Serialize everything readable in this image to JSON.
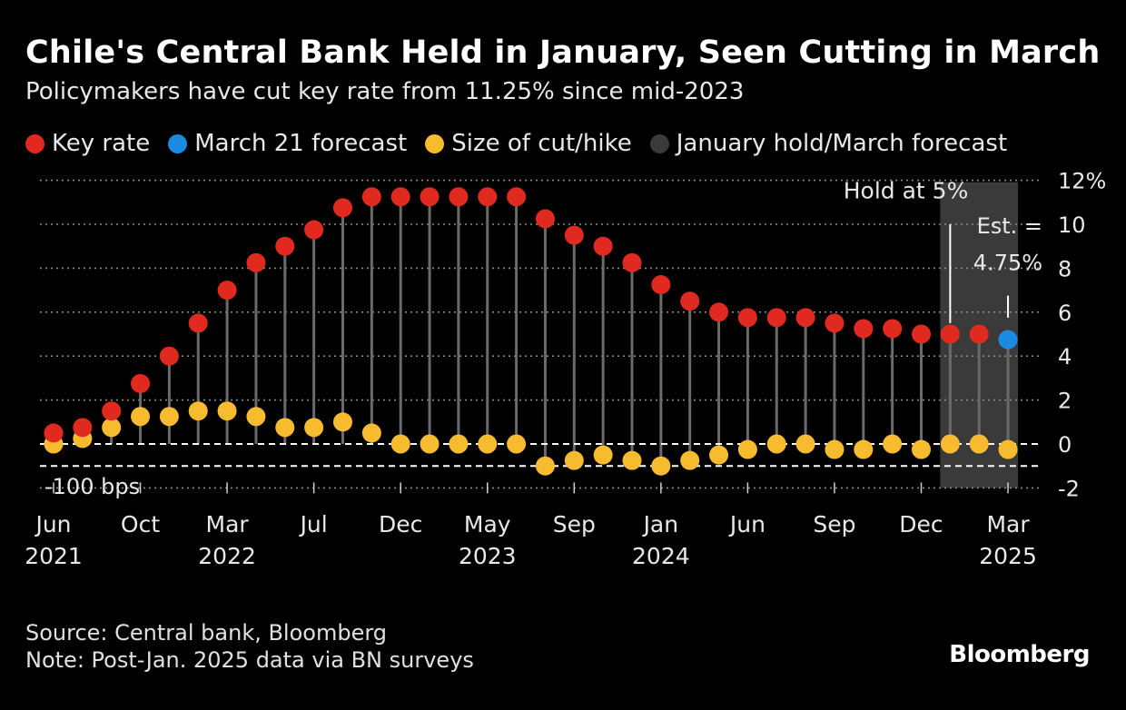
{
  "header": {
    "title": "Chile's Central Bank Held in January, Seen Cutting in March",
    "subtitle": "Policymakers have cut key rate from 11.25% since mid-2023"
  },
  "legend": [
    {
      "label": "Key rate",
      "color": "#e02a20"
    },
    {
      "label": "March 21 forecast",
      "color": "#1a8be0"
    },
    {
      "label": "Size of cut/hike",
      "color": "#f7bb2f"
    },
    {
      "label": "January hold/March forecast",
      "color": "#3a3a3a"
    }
  ],
  "footer": {
    "source": "Source: Central bank, Bloomberg",
    "note": "Note: Post-Jan. 2025 data via BN surveys"
  },
  "brand": "Bloomberg",
  "colors": {
    "key_rate": "#e02a20",
    "forecast": "#1a8be0",
    "cut": "#f7bb2f",
    "shade": "#3a3a3a",
    "stem": "#6a6a6a",
    "grid": "#8a8a8a"
  },
  "chart_data": {
    "type": "scatter",
    "title": "Chile's Central Bank Held in January, Seen Cutting in March",
    "ylim": [
      -2,
      12
    ],
    "yticks": [
      -2,
      0,
      2,
      4,
      6,
      8,
      10,
      12
    ],
    "ytick_labels": [
      "-2",
      "0",
      "2",
      "4",
      "6",
      "8",
      "10",
      "12%"
    ],
    "x_ticks": [
      {
        "index": 0,
        "month": "Jun",
        "year": "2021"
      },
      {
        "index": 3,
        "month": "Oct",
        "year": ""
      },
      {
        "index": 6,
        "month": "Mar",
        "year": "2022"
      },
      {
        "index": 9,
        "month": "Jul",
        "year": ""
      },
      {
        "index": 12,
        "month": "Dec",
        "year": ""
      },
      {
        "index": 15,
        "month": "May",
        "year": "2023"
      },
      {
        "index": 18,
        "month": "Sep",
        "year": ""
      },
      {
        "index": 21,
        "month": "Jan",
        "year": "2024"
      },
      {
        "index": 24,
        "month": "Jun",
        "year": ""
      },
      {
        "index": 27,
        "month": "Sep",
        "year": ""
      },
      {
        "index": 30,
        "month": "Dec",
        "year": ""
      },
      {
        "index": 33,
        "month": "Mar",
        "year": "2025"
      }
    ],
    "series": [
      {
        "name": "Key rate",
        "values": [
          0.5,
          0.75,
          1.5,
          2.75,
          4.0,
          5.5,
          7.0,
          8.25,
          9.0,
          9.75,
          10.75,
          11.25,
          11.25,
          11.25,
          11.25,
          11.25,
          11.25,
          10.25,
          9.5,
          9.0,
          8.25,
          7.25,
          6.5,
          6.0,
          5.75,
          5.75,
          5.75,
          5.5,
          5.25,
          5.25,
          5.0,
          5.0,
          5.0
        ]
      },
      {
        "name": "March 21 forecast",
        "values": [
          4.75
        ],
        "index": 33
      },
      {
        "name": "Size of cut/hike",
        "values": [
          0.0,
          0.25,
          0.75,
          1.25,
          1.25,
          1.5,
          1.5,
          1.25,
          0.75,
          0.75,
          1.0,
          0.5,
          0.0,
          0.0,
          0.0,
          0.0,
          0.0,
          -1.0,
          -0.75,
          -0.5,
          -0.75,
          -1.0,
          -0.75,
          -0.5,
          -0.25,
          0.0,
          0.0,
          -0.25,
          -0.25,
          0.0,
          -0.25,
          0.0,
          0.0,
          -0.25
        ]
      }
    ],
    "reference_line": {
      "value": -1,
      "label": "-100 bps"
    },
    "shaded_range": {
      "from_index": 31,
      "to_index": 33
    },
    "annotations": [
      {
        "text": "Hold at 5%",
        "index": 31
      },
      {
        "text_line1": "Est. =",
        "text_line2": "4.75%",
        "index": 33
      }
    ]
  }
}
